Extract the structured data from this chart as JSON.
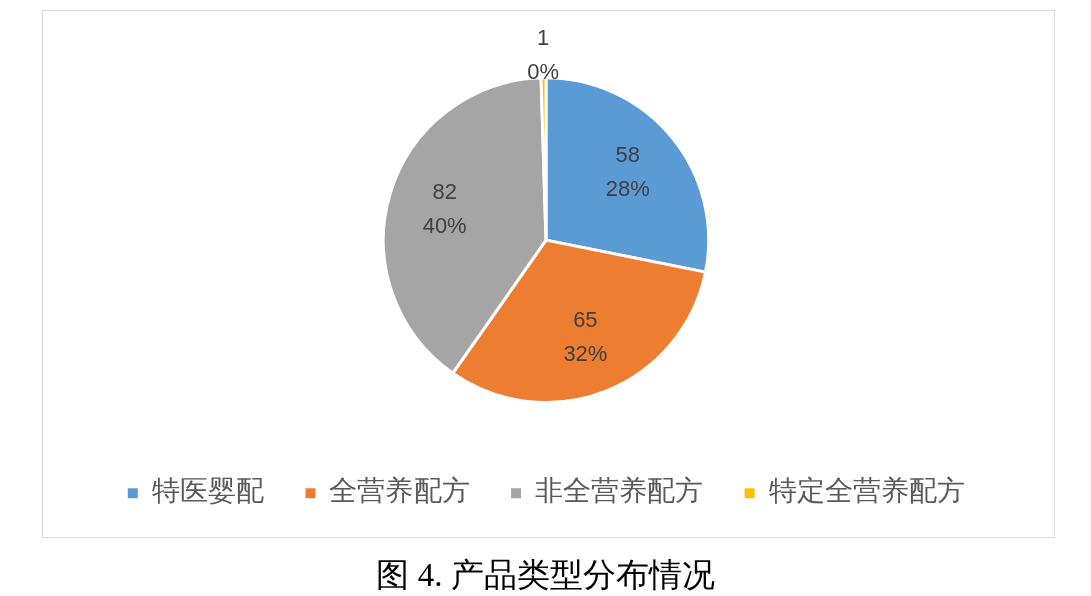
{
  "chart_data": {
    "type": "pie",
    "categories": [
      "特医婴配",
      "全营养配方",
      "非全营养配方",
      "特定全营养配方"
    ],
    "values": [
      58,
      65,
      82,
      1
    ],
    "colors": [
      "#5b9bd5",
      "#ed7d31",
      "#a5a5a5",
      "#ffc000"
    ],
    "value_labels": [
      "58\n28%",
      "65\n32%",
      "82\n40%",
      "1\n0%"
    ],
    "legend": "bottom",
    "annotations": [
      "图 4. 产品类型分布情况"
    ]
  }
}
